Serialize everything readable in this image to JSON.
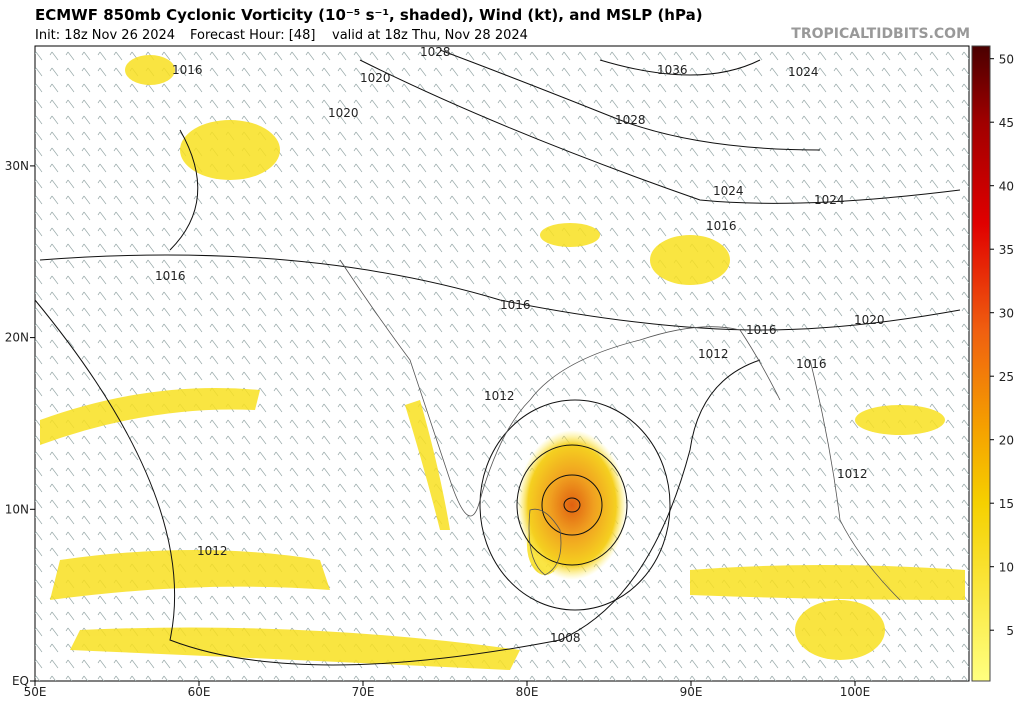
{
  "header": {
    "title": "ECMWF 850mb Cyclonic Vorticity (10⁻⁵ s⁻¹, shaded), Wind (kt), and MSLP (hPa)",
    "init": "Init: 18z Nov 26 2024",
    "forecast_hour": "Forecast Hour: [48]",
    "valid": "valid at 18z Thu, Nov 28 2024",
    "watermark": "TROPICALTIDBITS.COM"
  },
  "map": {
    "lon_labels": [
      "50E",
      "60E",
      "70E",
      "80E",
      "90E",
      "100E"
    ],
    "lat_labels": [
      "EQ",
      "10N",
      "20N",
      "30N"
    ],
    "isobar_labels": [
      "1016",
      "1016",
      "1016",
      "1016",
      "1016",
      "1016",
      "1020",
      "1020",
      "1020",
      "1028",
      "1028",
      "1036",
      "1024",
      "1024",
      "1024",
      "1012",
      "1012",
      "1012",
      "1012",
      "1008"
    ]
  },
  "colorbar": {
    "range": [
      1,
      51
    ],
    "ticks": [
      5,
      10,
      15,
      20,
      25,
      30,
      35,
      40,
      45,
      50
    ]
  }
}
